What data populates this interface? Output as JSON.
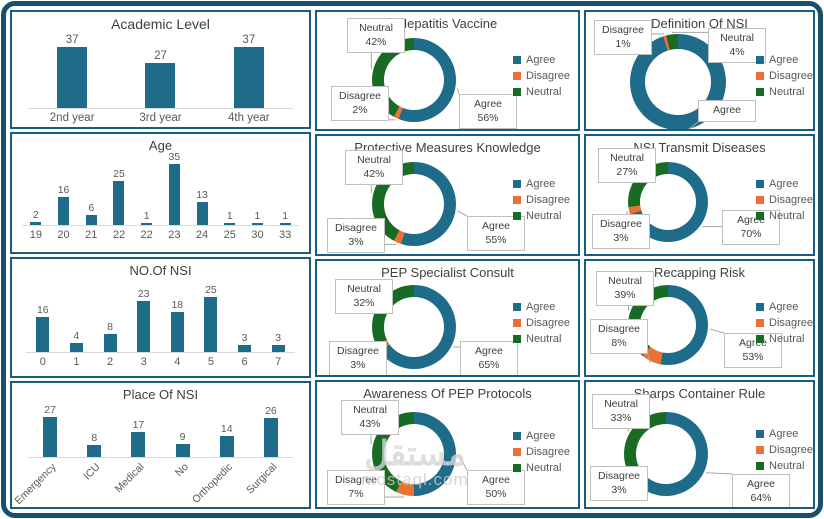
{
  "legend": [
    "Agree",
    "Disagree",
    "Neutral"
  ],
  "colors": {
    "agree": "#1F6B8A",
    "disagree": "#E97132",
    "neutral": "#196B24",
    "slice_colors": [
      "#1F6B8A",
      "#E97132",
      "#196B24"
    ],
    "bar": "#1F6B8A",
    "panel_border": "#1A5C7E",
    "frame_border": "#17506B"
  },
  "watermark": {
    "text_ar": "مستقل",
    "text_en": "mostaql.com"
  },
  "chart_data": [
    {
      "id": "academic-level",
      "type": "bar",
      "title": "Academic Level",
      "bars": [
        {
          "label": "2nd year",
          "value": 37
        },
        {
          "label": "3rd year",
          "value": 27
        },
        {
          "label": "4th year",
          "value": 37
        }
      ]
    },
    {
      "id": "age",
      "type": "bar",
      "title": "Age",
      "bars": [
        {
          "label": "19",
          "value": 2
        },
        {
          "label": "20",
          "value": 16
        },
        {
          "label": "21",
          "value": 6
        },
        {
          "label": "22",
          "value": 25
        },
        {
          "label": "22",
          "value": 1
        },
        {
          "label": "23",
          "value": 35
        },
        {
          "label": "24",
          "value": 13
        },
        {
          "label": "25",
          "value": 1
        },
        {
          "label": "30",
          "value": 1
        },
        {
          "label": "33",
          "value": 1
        }
      ]
    },
    {
      "id": "no-of-nsi",
      "type": "bar",
      "title": "NO.Of NSI",
      "bars": [
        {
          "label": "0",
          "value": 16
        },
        {
          "label": "1",
          "value": 4
        },
        {
          "label": "2",
          "value": 8
        },
        {
          "label": "3",
          "value": 23
        },
        {
          "label": "4",
          "value": 18
        },
        {
          "label": "5",
          "value": 25
        },
        {
          "label": "6",
          "value": 3
        },
        {
          "label": "7",
          "value": 3
        }
      ]
    },
    {
      "id": "place-of-nsi",
      "type": "bar",
      "title": "Place Of NSI",
      "bars": [
        {
          "label": "Emergency",
          "value": 27
        },
        {
          "label": "ICU",
          "value": 8
        },
        {
          "label": "Medical",
          "value": 17
        },
        {
          "label": "No",
          "value": 9
        },
        {
          "label": "Orthopedic",
          "value": 14
        },
        {
          "label": "Surgical",
          "value": 26
        }
      ]
    },
    {
      "id": "hepatitis-vaccine",
      "type": "donut",
      "title": "Hepatitis Vaccine",
      "legend_position": "right",
      "slices": [
        {
          "label": "Agree",
          "pct": 56,
          "pct_label": "56%"
        },
        {
          "label": "Disagree",
          "pct": 2,
          "pct_label": "2%"
        },
        {
          "label": "Neutral",
          "pct": 42,
          "pct_label": "42%"
        }
      ]
    },
    {
      "id": "protective-measures-knowledge",
      "type": "donut",
      "title": "Protective Measures Knowledge",
      "legend_position": "right",
      "slices": [
        {
          "label": "Agree",
          "pct": 55,
          "pct_label": "55%"
        },
        {
          "label": "Disagree",
          "pct": 3,
          "pct_label": "3%"
        },
        {
          "label": "Neutral",
          "pct": 42,
          "pct_label": "42%"
        }
      ]
    },
    {
      "id": "pep-specialist-consult",
      "type": "donut",
      "title": "PEP Specialist Consult",
      "legend_position": "right",
      "slices": [
        {
          "label": "Agree",
          "pct": 65,
          "pct_label": "65%"
        },
        {
          "label": "Disagree",
          "pct": 3,
          "pct_label": "3%"
        },
        {
          "label": "Neutral",
          "pct": 32,
          "pct_label": "32%"
        }
      ]
    },
    {
      "id": "awareness-of-pep-protocols",
      "type": "donut",
      "title": "Awareness Of PEP Protocols",
      "legend_position": "right",
      "slices": [
        {
          "label": "Agree",
          "pct": 50,
          "pct_label": "50%"
        },
        {
          "label": "Disagree",
          "pct": 7,
          "pct_label": "7%"
        },
        {
          "label": "Neutral",
          "pct": 43,
          "pct_label": "43%"
        }
      ]
    },
    {
      "id": "definition-of-nsi",
      "type": "donut",
      "title": "Definition Of NSI",
      "legend_position": "right",
      "slices": [
        {
          "label": "Agree",
          "pct": 95,
          "pct_label": ""
        },
        {
          "label": "Disagree",
          "pct": 1,
          "pct_label": "1%"
        },
        {
          "label": "Neutral",
          "pct": 4,
          "pct_label": "4%"
        }
      ]
    },
    {
      "id": "nsi-transmit-diseases",
      "type": "donut",
      "title": "NSI Transmit Diseases",
      "legend_position": "right",
      "slices": [
        {
          "label": "Agree",
          "pct": 70,
          "pct_label": "70%"
        },
        {
          "label": "Disagree",
          "pct": 3,
          "pct_label": "3%"
        },
        {
          "label": "Neutral",
          "pct": 27,
          "pct_label": "27%"
        }
      ]
    },
    {
      "id": "recapping-risk",
      "type": "donut",
      "title": "Recapping Risk",
      "legend_position": "right",
      "slices": [
        {
          "label": "Agree",
          "pct": 53,
          "pct_label": "53%"
        },
        {
          "label": "Disagree",
          "pct": 8,
          "pct_label": "8%"
        },
        {
          "label": "Neutral",
          "pct": 39,
          "pct_label": "39%"
        }
      ]
    },
    {
      "id": "sharps-container-rule",
      "type": "donut",
      "title": "Sharps Container Rule",
      "legend_position": "right",
      "slices": [
        {
          "label": "Agree",
          "pct": 64,
          "pct_label": "64%"
        },
        {
          "label": "Disagree",
          "pct": 3,
          "pct_label": "3%"
        },
        {
          "label": "Neutral",
          "pct": 33,
          "pct_label": "33%"
        }
      ]
    }
  ]
}
